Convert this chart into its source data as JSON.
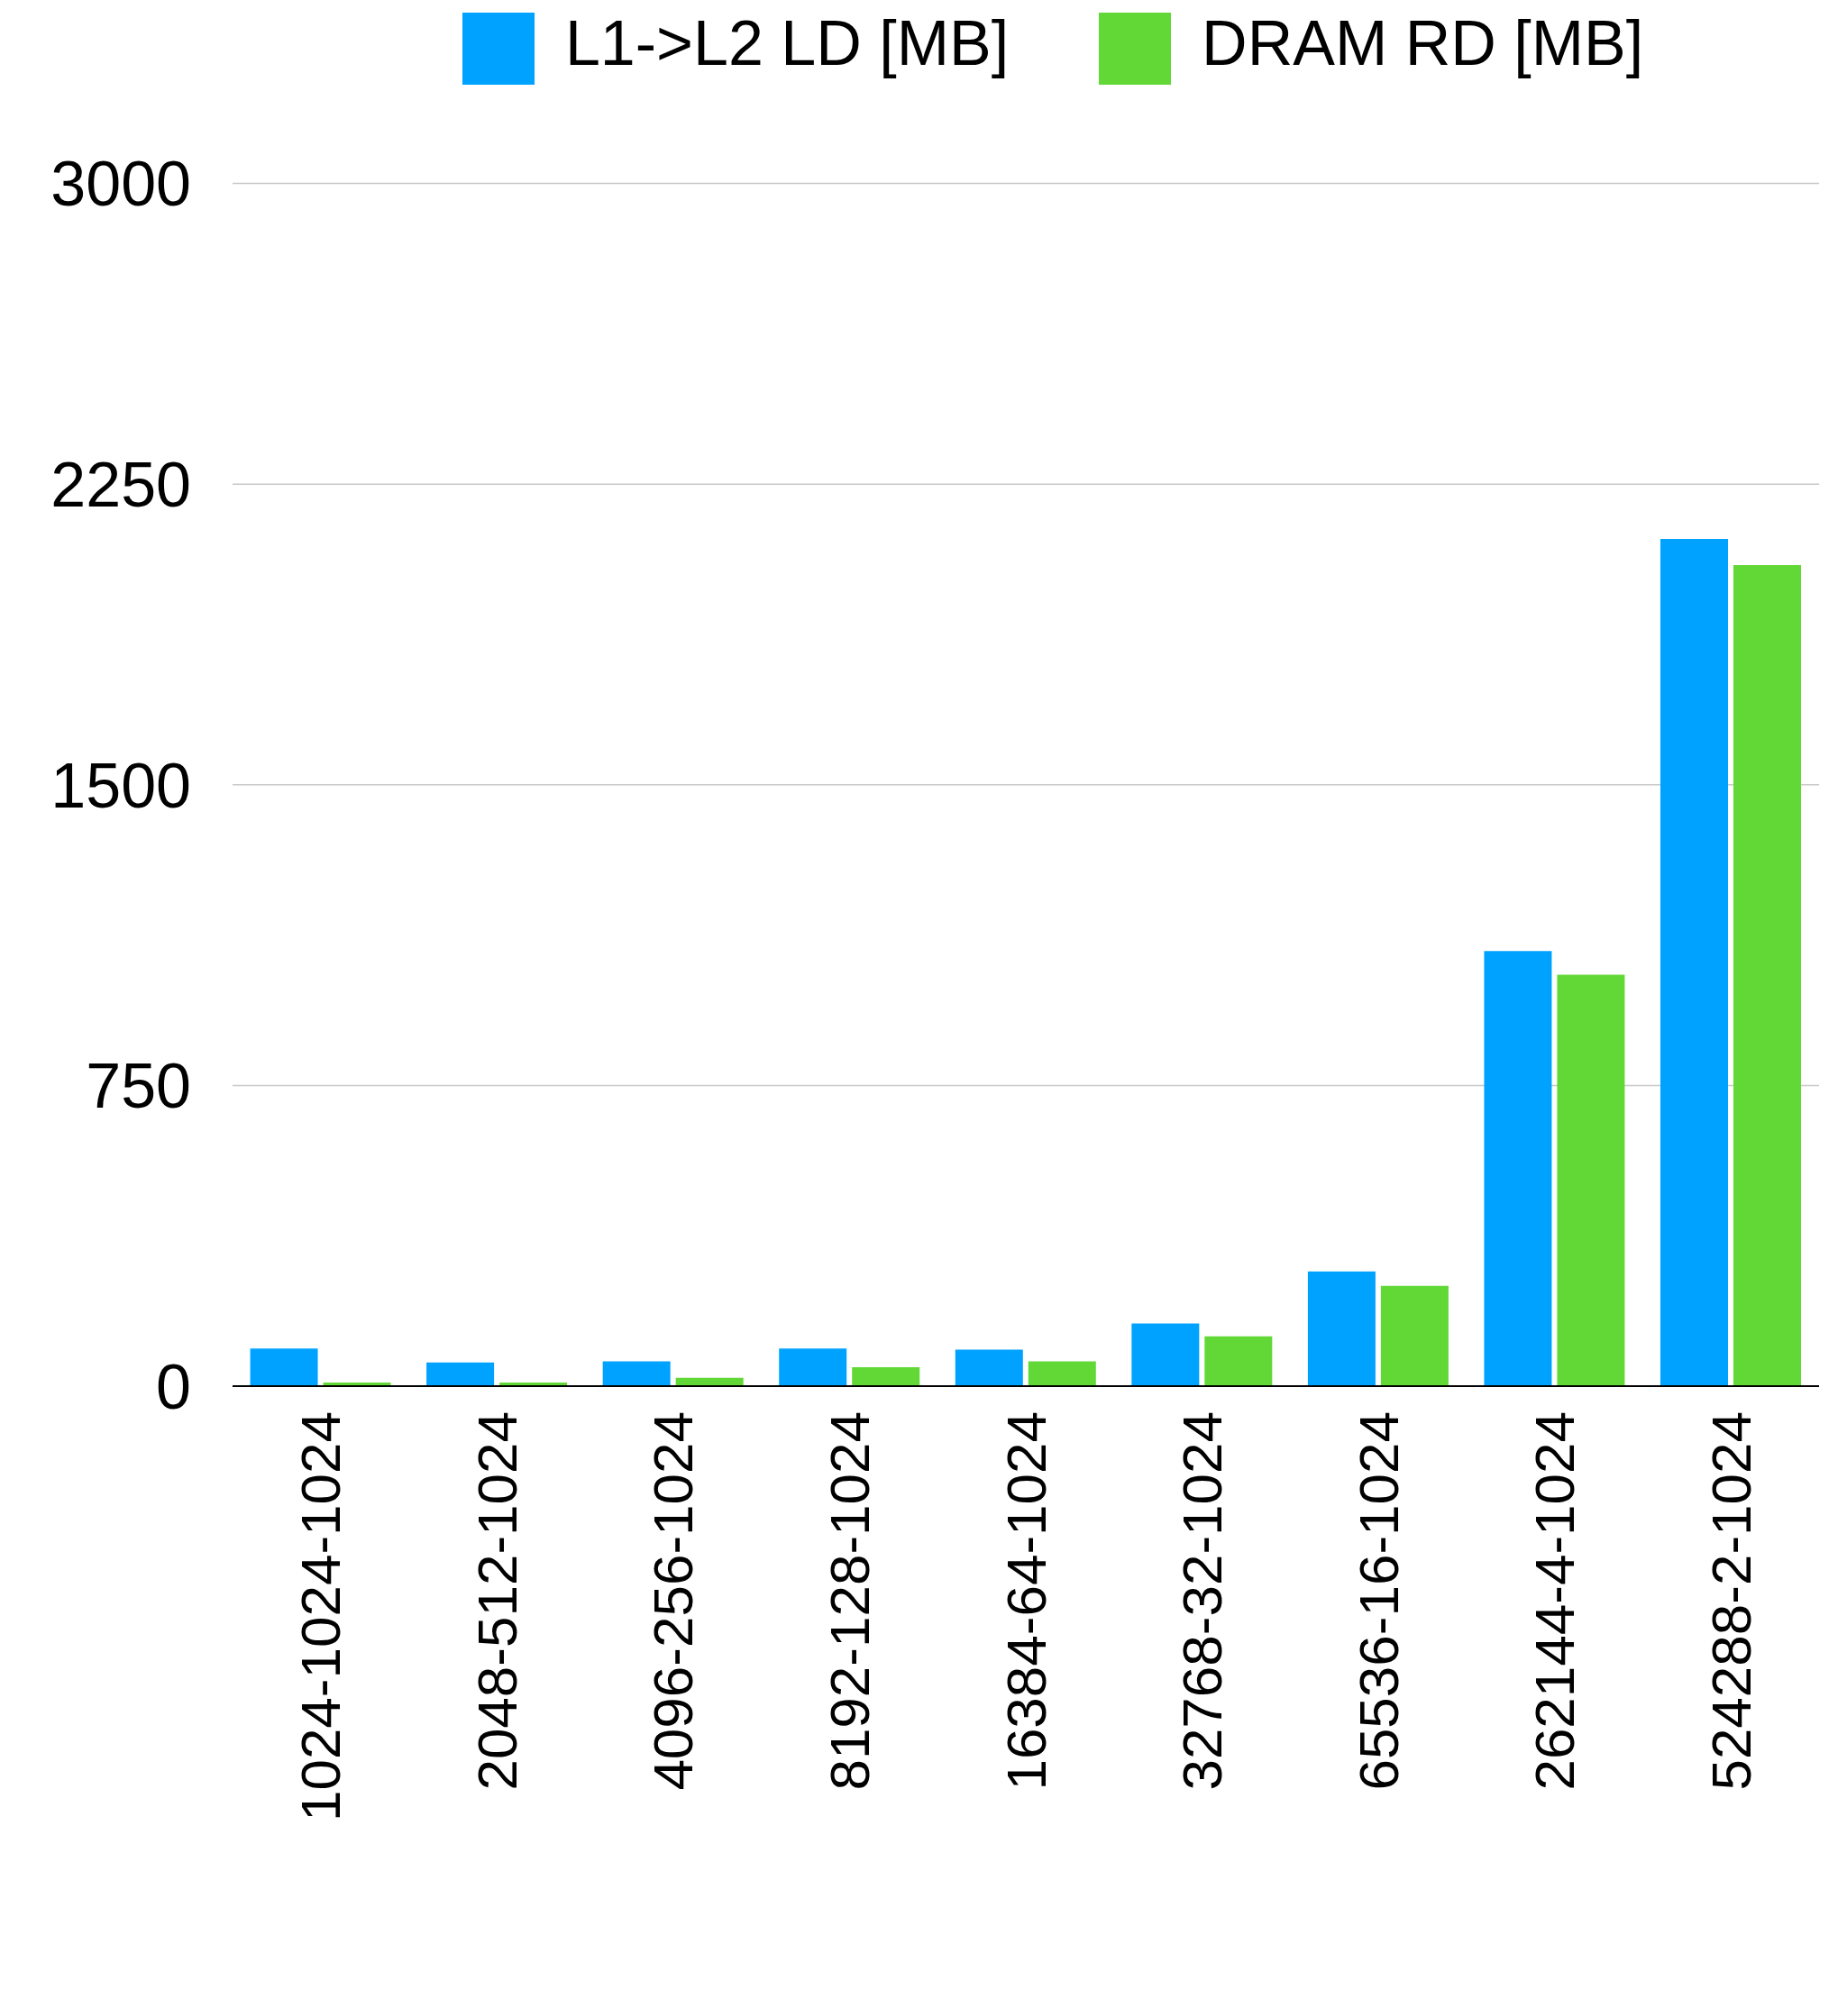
{
  "chart_data": {
    "type": "bar",
    "categories": [
      "1024-1024-1024",
      "2048-512-1024",
      "4096-256-1024",
      "8192-128-1024",
      "16384-64-1024",
      "32768-32-1024",
      "65536-16-1024",
      "262144-4-1024",
      "524288-2-1024"
    ],
    "series": [
      {
        "name": "L1->L2 LD [MB]",
        "color": "#00a2ff",
        "values": [
          94,
          59,
          62,
          94,
          91,
          156,
          286,
          1085,
          2113
        ]
      },
      {
        "name": "DRAM RD [MB]",
        "color": "#61d836",
        "values": [
          9,
          9,
          21,
          47,
          62,
          124,
          250,
          1026,
          2048
        ]
      }
    ],
    "ylim": [
      0,
      3000
    ],
    "yticks": [
      0,
      750,
      1500,
      2250,
      3000
    ],
    "grid": "y",
    "legend": "top"
  }
}
